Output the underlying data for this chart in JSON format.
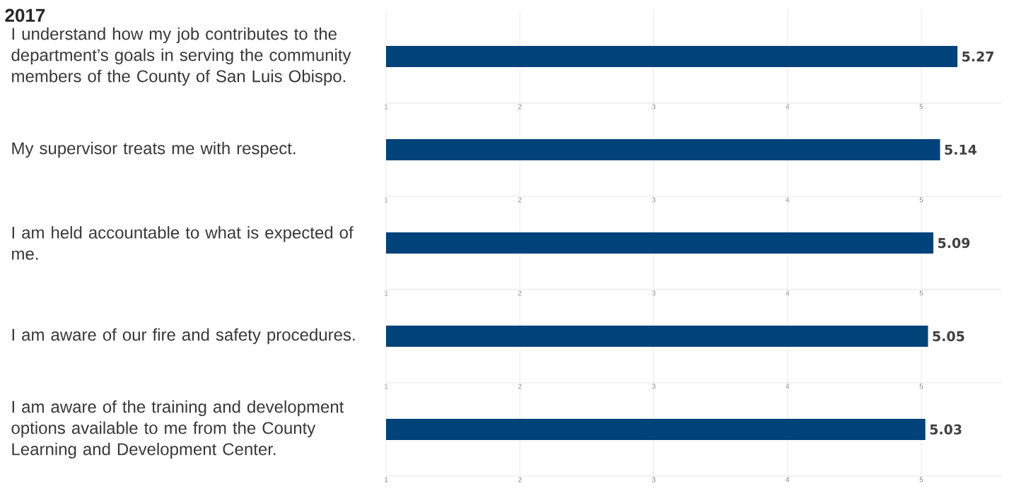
{
  "chart_data": [
    {
      "type": "bar",
      "orientation": "horizontal",
      "title": "2017",
      "categories": [
        "I understand how my job contributes to the department’s goals in serving the community members of the County of San Luis Obispo."
      ],
      "values": [
        5.27
      ],
      "color": "#00427a",
      "data_labels": true,
      "xlim": [
        1,
        5.6
      ],
      "xticks": [
        1,
        2,
        3,
        4,
        5
      ],
      "grid": "x"
    },
    {
      "type": "bar",
      "orientation": "horizontal",
      "categories": [
        "My supervisor treats me with respect."
      ],
      "values": [
        5.14
      ],
      "color": "#00427a",
      "data_labels": true,
      "xlim": [
        1,
        5.6
      ],
      "xticks": [
        1,
        2,
        3,
        4,
        5
      ],
      "grid": "x"
    },
    {
      "type": "bar",
      "orientation": "horizontal",
      "categories": [
        "I am held accountable to what is expected of me."
      ],
      "values": [
        5.09
      ],
      "color": "#00427a",
      "data_labels": true,
      "xlim": [
        1,
        5.6
      ],
      "xticks": [
        1,
        2,
        3,
        4,
        5
      ],
      "grid": "x"
    },
    {
      "type": "bar",
      "orientation": "horizontal",
      "categories": [
        "I am aware of our fire and safety procedures."
      ],
      "values": [
        5.05
      ],
      "color": "#00427a",
      "data_labels": true,
      "xlim": [
        1,
        5.6
      ],
      "xticks": [
        1,
        2,
        3,
        4,
        5
      ],
      "grid": "x"
    },
    {
      "type": "bar",
      "orientation": "horizontal",
      "categories": [
        "I am aware of the training and development options available to me from the County Learning and Development Center."
      ],
      "values": [
        5.03
      ],
      "color": "#00427a",
      "data_labels": true,
      "xlim": [
        1,
        5.6
      ],
      "xticks": [
        1,
        2,
        3,
        4,
        5
      ],
      "grid": "x"
    }
  ]
}
